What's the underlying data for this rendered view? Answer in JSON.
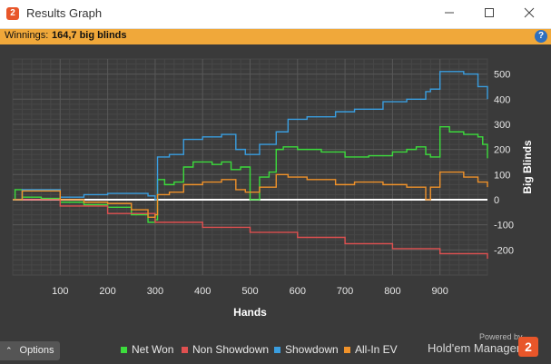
{
  "window": {
    "title": "Results Graph"
  },
  "winnings": {
    "label": "Winnings:",
    "value": "164,7 big blinds"
  },
  "bottom": {
    "options_label": "Options",
    "powered_by": "Powered by",
    "brand": "Hold'em Manager"
  },
  "chart_data": {
    "type": "line",
    "xlabel": "Hands",
    "ylabel": "Big Blinds",
    "xlim": [
      0,
      1000
    ],
    "ylim": [
      -300,
      560
    ],
    "x_ticks": [
      100,
      200,
      300,
      400,
      500,
      600,
      700,
      800,
      900
    ],
    "y_ticks": [
      -200,
      -100,
      0,
      100,
      200,
      300,
      400,
      500
    ],
    "y_tick_labels": [
      "-200",
      "-100",
      "0",
      "100",
      "200",
      "300",
      "400",
      "500"
    ],
    "grid": true,
    "legend": "bottom",
    "series": [
      {
        "name": "Net Won",
        "color": "#3cdc3c",
        "x": [
          0,
          5,
          20,
          60,
          100,
          150,
          200,
          250,
          285,
          300,
          305,
          320,
          340,
          360,
          380,
          400,
          420,
          440,
          460,
          480,
          500,
          520,
          540,
          555,
          570,
          600,
          650,
          700,
          750,
          800,
          830,
          850,
          870,
          880,
          900,
          920,
          950,
          980,
          990,
          1000
        ],
        "y": [
          0,
          40,
          10,
          5,
          -10,
          -20,
          -30,
          -60,
          -90,
          -80,
          80,
          60,
          70,
          130,
          150,
          150,
          140,
          150,
          120,
          130,
          0,
          90,
          110,
          200,
          210,
          200,
          190,
          170,
          175,
          190,
          200,
          210,
          180,
          170,
          290,
          270,
          260,
          250,
          220,
          165
        ]
      },
      {
        "name": "Non Showdown",
        "color": "#e05050",
        "x": [
          0,
          100,
          200,
          300,
          400,
          500,
          600,
          700,
          800,
          900,
          1000
        ],
        "y": [
          0,
          -25,
          -55,
          -90,
          -110,
          -130,
          -150,
          -175,
          -195,
          -215,
          -235
        ]
      },
      {
        "name": "Showdown",
        "color": "#3a9ee0",
        "x": [
          0,
          20,
          100,
          150,
          200,
          250,
          285,
          300,
          305,
          330,
          360,
          400,
          440,
          470,
          490,
          520,
          555,
          580,
          620,
          680,
          720,
          780,
          830,
          870,
          880,
          900,
          950,
          980,
          1000
        ],
        "y": [
          0,
          40,
          10,
          20,
          25,
          25,
          15,
          0,
          170,
          180,
          240,
          250,
          260,
          200,
          180,
          220,
          270,
          320,
          330,
          350,
          360,
          390,
          400,
          430,
          440,
          510,
          500,
          450,
          400
        ]
      },
      {
        "name": "All-In EV",
        "color": "#f0922a",
        "x": [
          0,
          20,
          100,
          150,
          200,
          250,
          285,
          300,
          305,
          330,
          360,
          400,
          440,
          470,
          490,
          520,
          555,
          580,
          620,
          680,
          720,
          780,
          830,
          870,
          880,
          900,
          950,
          980,
          1000
        ],
        "y": [
          0,
          35,
          0,
          -10,
          -15,
          -40,
          -70,
          -60,
          20,
          30,
          60,
          70,
          80,
          40,
          30,
          50,
          100,
          90,
          80,
          60,
          70,
          60,
          50,
          0,
          50,
          110,
          90,
          70,
          50
        ]
      }
    ]
  }
}
